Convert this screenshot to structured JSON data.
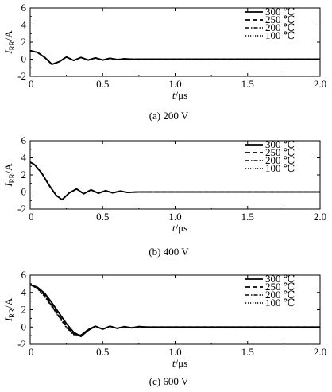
{
  "chart_data": [
    {
      "type": "line",
      "caption": "(a)  200 V",
      "xlabel_var": "t",
      "xlabel_unit": "/μs",
      "ylabel_var": "I",
      "ylabel_sub": "RR",
      "ylabel_unit": "/A",
      "xlim": [
        0,
        2.0
      ],
      "ylim": [
        -2,
        6
      ],
      "xticks": [
        "0",
        "0.5",
        "1.0",
        "1.5",
        "2.0"
      ],
      "yticks": [
        "-2",
        "0",
        "2",
        "4",
        "6"
      ],
      "legend_position": "top-right",
      "series": [
        {
          "name": "300 ℃",
          "dash": "solid",
          "x": [
            0,
            0.05,
            0.1,
            0.15,
            0.2,
            0.25,
            0.3,
            0.35,
            0.4,
            0.45,
            0.5,
            0.55,
            0.6,
            0.65,
            0.7,
            0.8,
            1.0,
            2.0
          ],
          "y": [
            1.0,
            0.8,
            0.2,
            -0.6,
            -0.3,
            0.25,
            -0.15,
            0.2,
            -0.1,
            0.15,
            -0.1,
            0.1,
            -0.05,
            0.05,
            0,
            0,
            0,
            0
          ]
        },
        {
          "name": "250 ℃",
          "dash": "dash",
          "x": [
            0,
            0.05,
            0.1,
            0.15,
            0.2,
            0.25,
            0.3,
            0.35,
            0.4,
            0.45,
            0.5,
            0.55,
            0.6,
            0.65,
            0.7,
            0.8,
            1.0,
            2.0
          ],
          "y": [
            1.0,
            0.8,
            0.2,
            -0.6,
            -0.3,
            0.25,
            -0.15,
            0.2,
            -0.1,
            0.15,
            -0.1,
            0.1,
            -0.05,
            0.05,
            0,
            0,
            0,
            0
          ]
        },
        {
          "name": "200 ℃",
          "dash": "dashdot",
          "x": [
            0,
            0.05,
            0.1,
            0.15,
            0.2,
            0.25,
            0.3,
            0.35,
            0.4,
            0.45,
            0.5,
            0.55,
            0.6,
            0.65,
            0.7,
            0.8,
            1.0,
            2.0
          ],
          "y": [
            1.0,
            0.8,
            0.2,
            -0.6,
            -0.3,
            0.25,
            -0.15,
            0.2,
            -0.1,
            0.15,
            -0.1,
            0.1,
            -0.05,
            0.05,
            0,
            0,
            0,
            0
          ]
        },
        {
          "name": "100 ℃",
          "dash": "dot",
          "x": [
            0,
            0.05,
            0.1,
            0.15,
            0.2,
            0.25,
            0.3,
            0.35,
            0.4,
            0.45,
            0.5,
            0.55,
            0.6,
            0.65,
            0.7,
            0.8,
            1.0,
            2.0
          ],
          "y": [
            1.0,
            0.8,
            0.2,
            -0.6,
            -0.3,
            0.25,
            -0.15,
            0.2,
            -0.1,
            0.15,
            -0.1,
            0.1,
            -0.05,
            0.05,
            0,
            0,
            0,
            0
          ]
        }
      ]
    },
    {
      "type": "line",
      "caption": "(b)  400 V",
      "xlabel_var": "t",
      "xlabel_unit": "/μs",
      "ylabel_var": "I",
      "ylabel_sub": "RR",
      "ylabel_unit": "/A",
      "xlim": [
        0,
        2.0
      ],
      "ylim": [
        -2,
        6
      ],
      "xticks": [
        "0",
        "0.5",
        "1.0",
        "1.5",
        "2.0"
      ],
      "yticks": [
        "-2",
        "0",
        "2",
        "4",
        "6"
      ],
      "legend_position": "top-right",
      "series": [
        {
          "name": "300 ℃",
          "dash": "solid",
          "x": [
            0,
            0.03,
            0.08,
            0.13,
            0.18,
            0.22,
            0.27,
            0.32,
            0.37,
            0.42,
            0.47,
            0.52,
            0.57,
            0.62,
            0.67,
            0.75,
            1.0,
            2.0
          ],
          "y": [
            3.5,
            3.2,
            2.2,
            0.8,
            -0.4,
            -0.9,
            -0.1,
            0.35,
            -0.2,
            0.25,
            -0.15,
            0.15,
            -0.1,
            0.1,
            -0.05,
            0,
            0,
            0
          ]
        },
        {
          "name": "250 ℃",
          "dash": "dash",
          "x": [
            0,
            0.03,
            0.08,
            0.13,
            0.18,
            0.22,
            0.27,
            0.32,
            0.37,
            0.42,
            0.47,
            0.52,
            0.57,
            0.62,
            0.67,
            0.75,
            1.0,
            2.0
          ],
          "y": [
            3.5,
            3.2,
            2.2,
            0.8,
            -0.4,
            -0.9,
            -0.1,
            0.35,
            -0.2,
            0.25,
            -0.15,
            0.15,
            -0.1,
            0.1,
            -0.05,
            0,
            0,
            0
          ]
        },
        {
          "name": "200 ℃",
          "dash": "dashdot",
          "x": [
            0,
            0.03,
            0.08,
            0.13,
            0.18,
            0.22,
            0.27,
            0.32,
            0.37,
            0.42,
            0.47,
            0.52,
            0.57,
            0.62,
            0.67,
            0.75,
            1.0,
            2.0
          ],
          "y": [
            3.5,
            3.2,
            2.2,
            0.8,
            -0.4,
            -0.9,
            -0.1,
            0.35,
            -0.2,
            0.25,
            -0.15,
            0.15,
            -0.1,
            0.1,
            -0.05,
            0,
            0,
            0
          ]
        },
        {
          "name": "100 ℃",
          "dash": "dot",
          "x": [
            0,
            0.03,
            0.08,
            0.13,
            0.18,
            0.22,
            0.27,
            0.32,
            0.37,
            0.42,
            0.47,
            0.52,
            0.57,
            0.62,
            0.67,
            0.75,
            1.0,
            2.0
          ],
          "y": [
            3.5,
            3.2,
            2.2,
            0.8,
            -0.4,
            -0.9,
            -0.1,
            0.35,
            -0.2,
            0.25,
            -0.15,
            0.15,
            -0.1,
            0.1,
            -0.05,
            0,
            0,
            0
          ]
        }
      ]
    },
    {
      "type": "line",
      "caption": "(c)  600 V",
      "xlabel_var": "t",
      "xlabel_unit": "/μs",
      "ylabel_var": "I",
      "ylabel_sub": "RR",
      "ylabel_unit": "/A",
      "xlim": [
        0,
        2.0
      ],
      "ylim": [
        -2,
        6
      ],
      "xticks": [
        "0",
        "0.5",
        "1.0",
        "1.5",
        "2.0"
      ],
      "yticks": [
        "-2",
        "0",
        "2",
        "4",
        "6"
      ],
      "legend_position": "top-right",
      "series": [
        {
          "name": "300 ℃",
          "dash": "solid",
          "x": [
            0,
            0.05,
            0.1,
            0.15,
            0.2,
            0.25,
            0.3,
            0.35,
            0.4,
            0.45,
            0.5,
            0.55,
            0.6,
            0.65,
            0.7,
            0.75,
            0.8,
            1.0,
            2.0
          ],
          "y": [
            4.9,
            4.6,
            3.9,
            2.8,
            1.6,
            0.4,
            -0.6,
            -1.1,
            -0.4,
            0.1,
            -0.25,
            0.1,
            -0.15,
            0.05,
            -0.1,
            0.05,
            0,
            0,
            0
          ]
        },
        {
          "name": "250 ℃",
          "dash": "dash",
          "x": [
            0,
            0.05,
            0.1,
            0.15,
            0.2,
            0.25,
            0.3,
            0.35,
            0.4,
            0.45,
            0.5,
            0.55,
            0.6,
            0.65,
            0.7,
            0.75,
            0.8,
            1.0,
            2.0
          ],
          "y": [
            4.9,
            4.5,
            3.7,
            2.5,
            1.3,
            0.1,
            -0.8,
            -1.0,
            -0.3,
            0.1,
            -0.25,
            0.1,
            -0.15,
            0.05,
            -0.1,
            0.05,
            0,
            0,
            0
          ]
        },
        {
          "name": "200 ℃",
          "dash": "dashdot",
          "x": [
            0,
            0.05,
            0.1,
            0.15,
            0.2,
            0.25,
            0.3,
            0.35,
            0.4,
            0.45,
            0.5,
            0.55,
            0.6,
            0.65,
            0.7,
            0.75,
            0.8,
            1.0,
            2.0
          ],
          "y": [
            4.9,
            4.5,
            3.6,
            2.4,
            1.2,
            0.0,
            -0.85,
            -0.95,
            -0.3,
            0.1,
            -0.25,
            0.1,
            -0.15,
            0.05,
            -0.1,
            0.05,
            0,
            0,
            0
          ]
        },
        {
          "name": "100 ℃",
          "dash": "dot",
          "x": [
            0,
            0.05,
            0.1,
            0.15,
            0.2,
            0.25,
            0.3,
            0.35,
            0.4,
            0.45,
            0.5,
            0.55,
            0.6,
            0.65,
            0.7,
            0.75,
            0.8,
            1.0,
            2.0
          ],
          "y": [
            4.9,
            4.4,
            3.5,
            2.3,
            1.1,
            -0.1,
            -0.9,
            -0.9,
            -0.3,
            0.1,
            -0.25,
            0.1,
            -0.15,
            0.05,
            -0.1,
            0.05,
            0,
            0,
            0
          ]
        }
      ]
    }
  ]
}
